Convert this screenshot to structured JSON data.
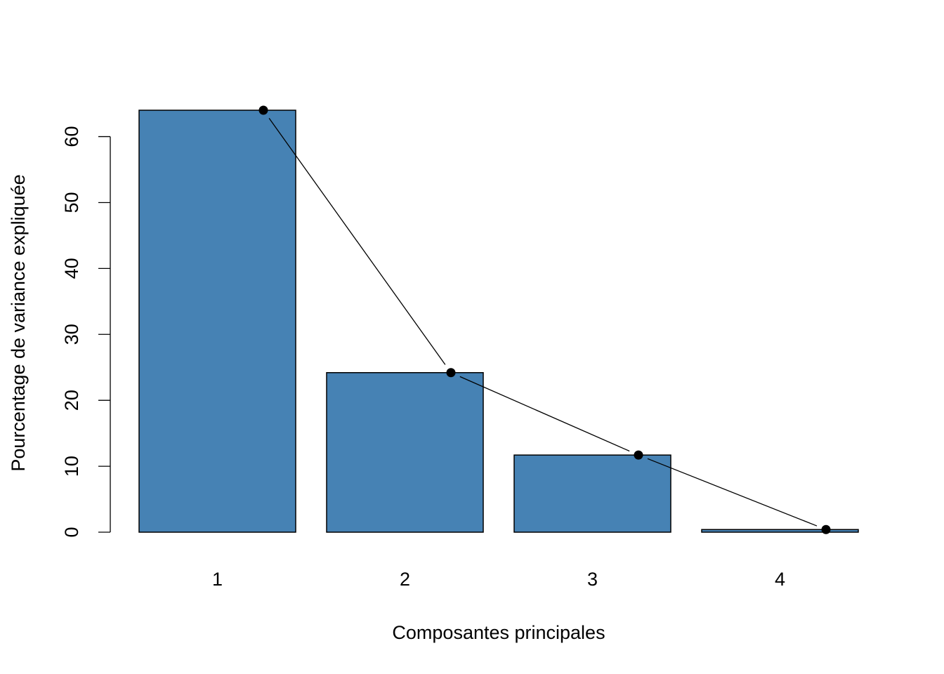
{
  "chart_data": {
    "type": "bar",
    "title": "",
    "xlabel": "Composantes principales",
    "ylabel": "Pourcentage de variance expliquée",
    "categories": [
      "1",
      "2",
      "3",
      "4"
    ],
    "values": [
      64.0,
      24.2,
      11.7,
      0.4
    ],
    "ylim": [
      0,
      64
    ],
    "y_ticks": [
      "0",
      "10",
      "20",
      "30",
      "40",
      "50",
      "60"
    ],
    "grid": false,
    "legend": "none",
    "bar_color": "#4682B4",
    "bar_outline_color": "#000000",
    "overlay_line": {
      "type": "line",
      "marker": "filled-circle",
      "color": "#000000",
      "values": [
        64.0,
        24.2,
        11.7,
        0.4
      ]
    }
  }
}
